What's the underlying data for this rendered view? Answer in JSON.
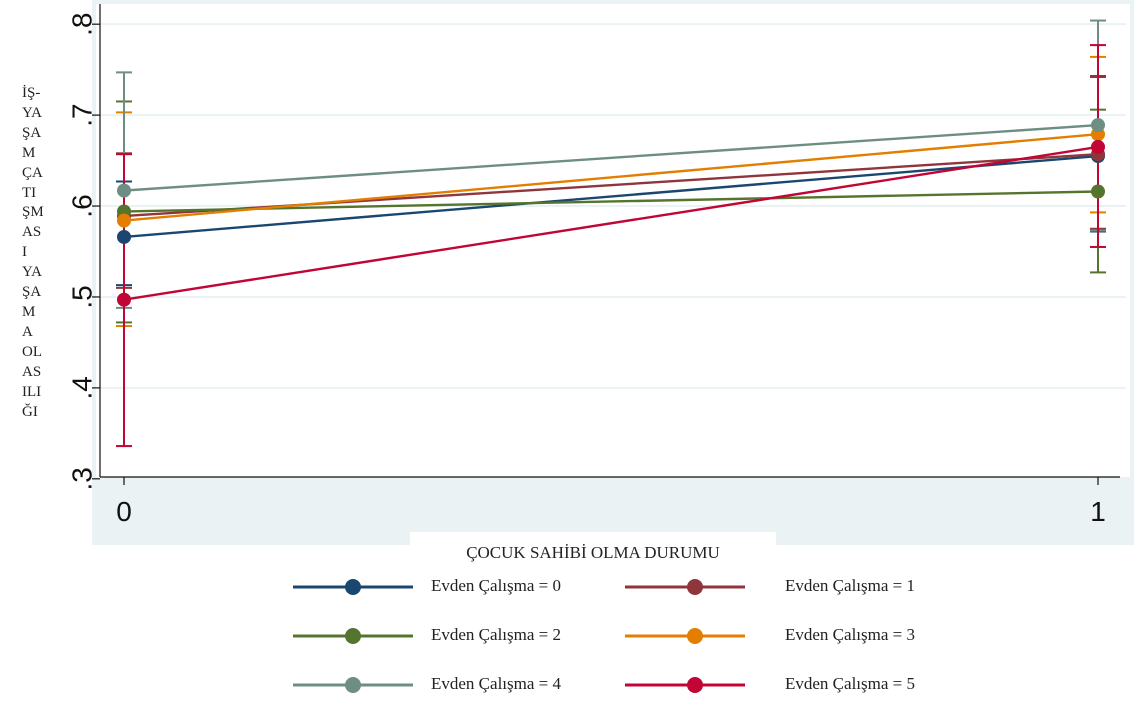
{
  "chart_data": {
    "type": "line",
    "ylabel": "İŞ-\nYA\nŞA\nM\nÇA\nTI\nŞM\nAS\nI\nYA\nŞA\nM\nA\nOL\nAS\nILI\nĞI",
    "xlabel": "ÇOCUK SAHİBİ OLMA DURUMU",
    "x": [
      0,
      1
    ],
    "xtick_labels": [
      "0",
      "1"
    ],
    "ylim": [
      0.28,
      0.82
    ],
    "yticks": [
      0.3,
      0.4,
      0.5,
      0.6,
      0.7,
      0.8
    ],
    "ytick_labels": [
      ".3",
      ".4",
      ".5",
      ".6",
      ".7",
      ".8"
    ],
    "grid": true,
    "legend_position": "bottom",
    "series": [
      {
        "name": "Evden Çalışma = 0",
        "color": "#1a476f",
        "values": [
          0.566,
          0.655
        ],
        "ci_low": [
          0.513,
          0.572
        ],
        "ci_high": [
          0.627,
          0.742
        ]
      },
      {
        "name": "Evden Çalışma = 1",
        "color": "#90353b",
        "values": [
          0.589,
          0.657
        ],
        "ci_low": [
          0.51,
          0.575
        ],
        "ci_high": [
          0.658,
          0.743
        ]
      },
      {
        "name": "Evden Çalışma = 2",
        "color": "#55752f",
        "values": [
          0.594,
          0.616
        ],
        "ci_low": [
          0.472,
          0.527
        ],
        "ci_high": [
          0.715,
          0.706
        ]
      },
      {
        "name": "Evden Çalışma = 3",
        "color": "#e37e00",
        "values": [
          0.584,
          0.679
        ],
        "ci_low": [
          0.468,
          0.593
        ],
        "ci_high": [
          0.703,
          0.764
        ]
      },
      {
        "name": "Evden Çalışma = 4",
        "color": "#6e8e84",
        "values": [
          0.617,
          0.689
        ],
        "ci_low": [
          0.488,
          0.573
        ],
        "ci_high": [
          0.747,
          0.804
        ]
      },
      {
        "name": "Evden Çalışma = 5",
        "color": "#c10534",
        "values": [
          0.497,
          0.665
        ],
        "ci_low": [
          0.336,
          0.555
        ],
        "ci_high": [
          0.657,
          0.777
        ]
      }
    ]
  }
}
